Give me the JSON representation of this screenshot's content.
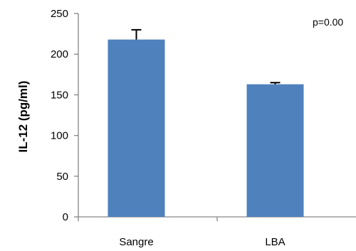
{
  "chart_data": {
    "type": "bar",
    "categories": [
      "Sangre",
      "LBA"
    ],
    "values": [
      218,
      163
    ],
    "error": [
      12,
      2
    ],
    "ylabel": "IL-12 (pg/ml)",
    "xlabel": "",
    "ylim": [
      0,
      250
    ],
    "yticks": [
      0,
      50,
      100,
      150,
      200,
      250
    ],
    "annotation": "p=0.00",
    "grid": false,
    "colors": {
      "bar": "#4f81bd",
      "axis": "#868686",
      "error": "#000000"
    }
  }
}
